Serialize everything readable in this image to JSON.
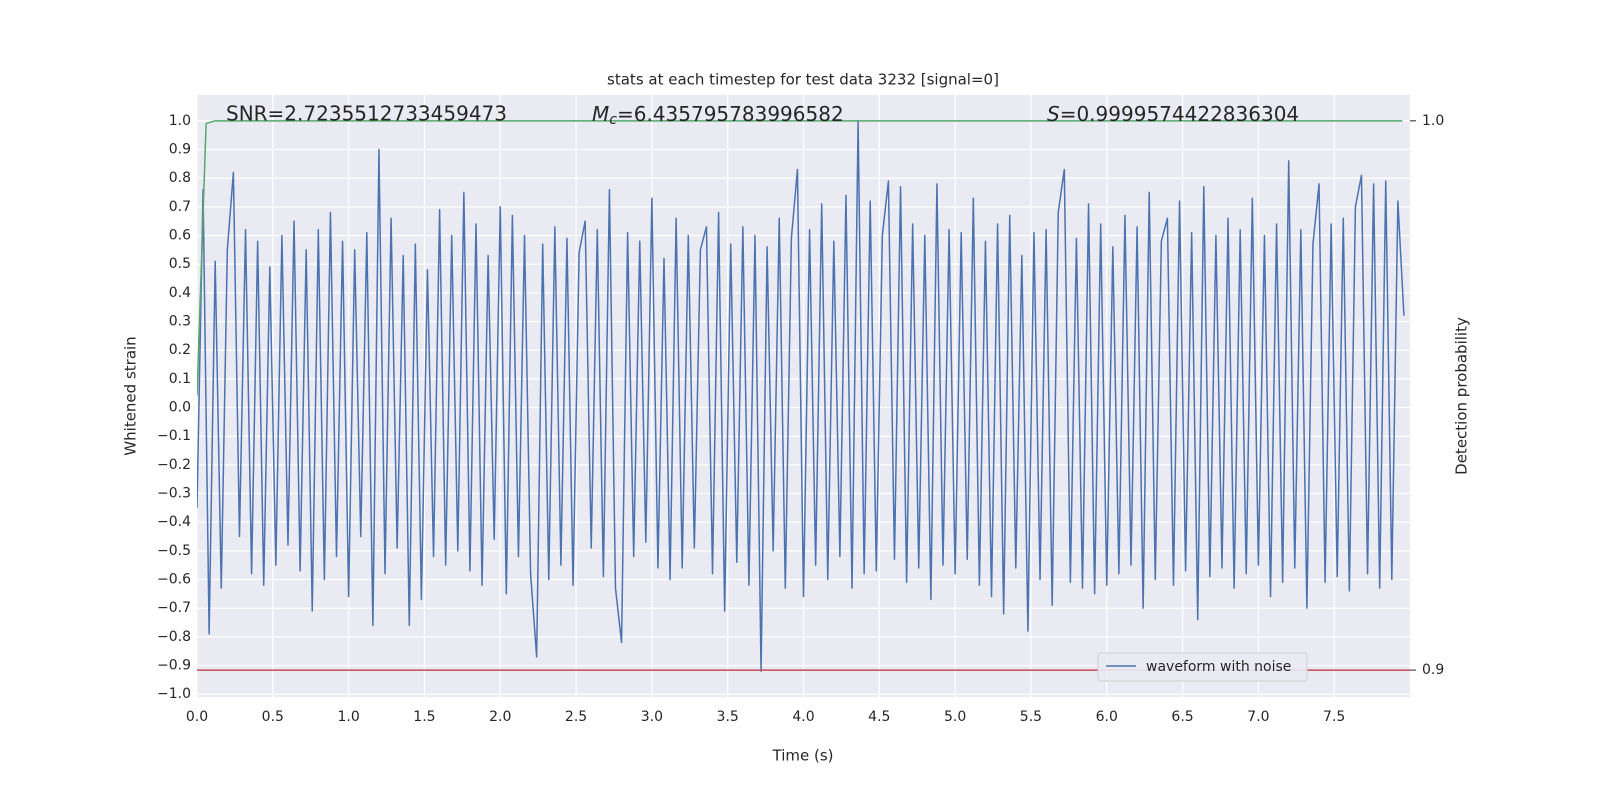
{
  "chart_data": {
    "type": "line",
    "title": "stats at each timestep for test data 3232 [signal=0]",
    "xlabel": "Time (s)",
    "ylabel": "Whitened strain",
    "y2label": "Detection probability",
    "annotations": [
      {
        "text": "SNR=2.7235512733459473"
      },
      {
        "symbol": "M",
        "subscript": "c",
        "text": "=6.435795783996582"
      },
      {
        "symbol": "S",
        "text": "=0.9999574422836304"
      }
    ],
    "xlim": [
      0,
      8.0
    ],
    "ylim": [
      -1.01,
      1.09
    ],
    "y2lim": [
      0.8951,
      1.0047
    ],
    "xticks": [
      {
        "value": 0,
        "label": "0.0"
      },
      0.5,
      {
        "value": 1,
        "label": "1.0"
      },
      1.5,
      {
        "value": 2,
        "label": "2.0"
      },
      2.5,
      {
        "value": 3,
        "label": "3.0"
      },
      3.5,
      {
        "value": 4,
        "label": "4.0"
      },
      4.5,
      {
        "value": 5,
        "label": "5.0"
      },
      5.5,
      {
        "value": 6,
        "label": "6.0"
      },
      6.5,
      {
        "value": 7,
        "label": "7.0"
      },
      7.5
    ],
    "yticks": [
      {
        "value": -1,
        "label": "−1.0"
      },
      {
        "value": -0.9,
        "label": "−0.9"
      },
      {
        "value": -0.8,
        "label": "−0.8"
      },
      {
        "value": -0.7,
        "label": "−0.7"
      },
      {
        "value": -0.6,
        "label": "−0.6"
      },
      {
        "value": -0.5,
        "label": "−0.5"
      },
      {
        "value": -0.4,
        "label": "−0.4"
      },
      {
        "value": -0.3,
        "label": "−0.3"
      },
      {
        "value": -0.2,
        "label": "−0.2"
      },
      {
        "value": -0.1,
        "label": "−0.1"
      },
      {
        "value": 0,
        "label": "0.0"
      },
      0.1,
      0.2,
      0.3,
      0.4,
      0.5,
      0.6,
      0.7,
      0.8,
      0.9,
      {
        "value": 1,
        "label": "1.0"
      }
    ],
    "y2ticks": [
      0.9,
      {
        "value": 1,
        "label": "1.0"
      }
    ],
    "grid": true,
    "legend": "lower right",
    "series": [
      {
        "name": "waveform with noise",
        "color": "#4c72b0",
        "x": [
          0,
          0.04,
          0.08,
          0.12,
          0.16,
          0.2,
          0.24,
          0.28,
          0.32,
          0.36,
          0.4,
          0.44,
          0.48,
          0.52,
          0.56,
          0.6,
          0.64,
          0.68,
          0.72,
          0.76,
          0.8,
          0.84,
          0.88,
          0.92,
          0.96,
          1,
          1.04,
          1.08,
          1.12,
          1.16,
          1.2,
          1.24,
          1.28,
          1.32,
          1.36,
          1.4,
          1.44,
          1.48,
          1.52,
          1.56,
          1.6,
          1.64,
          1.68,
          1.72,
          1.76,
          1.8,
          1.84,
          1.88,
          1.92,
          1.96,
          2,
          2.04,
          2.08,
          2.12,
          2.16,
          2.2,
          2.24,
          2.28,
          2.32,
          2.36,
          2.4,
          2.44,
          2.48,
          2.52,
          2.56,
          2.6,
          2.64,
          2.68,
          2.72,
          2.76,
          2.8,
          2.84,
          2.88,
          2.92,
          2.96,
          3,
          3.04,
          3.08,
          3.12,
          3.16,
          3.2,
          3.24,
          3.28,
          3.32,
          3.36,
          3.4,
          3.44,
          3.48,
          3.52,
          3.56,
          3.6,
          3.64,
          3.68,
          3.72,
          3.76,
          3.8,
          3.84,
          3.88,
          3.92,
          3.96,
          4,
          4.04,
          4.08,
          4.12,
          4.16,
          4.2,
          4.24,
          4.28,
          4.32,
          4.36,
          4.4,
          4.44,
          4.48,
          4.52,
          4.56,
          4.6,
          4.64,
          4.68,
          4.72,
          4.76,
          4.8,
          4.84,
          4.88,
          4.92,
          4.96,
          5,
          5.04,
          5.08,
          5.12,
          5.16,
          5.2,
          5.24,
          5.28,
          5.32,
          5.36,
          5.4,
          5.44,
          5.48,
          5.52,
          5.56,
          5.6,
          5.64,
          5.68,
          5.72,
          5.76,
          5.8,
          5.84,
          5.88,
          5.92,
          5.96,
          6,
          6.04,
          6.08,
          6.12,
          6.16,
          6.2,
          6.24,
          6.28,
          6.32,
          6.36,
          6.4,
          6.44,
          6.48,
          6.52,
          6.56,
          6.6,
          6.64,
          6.68,
          6.72,
          6.76,
          6.8,
          6.84,
          6.88,
          6.92,
          6.96,
          7,
          7.04,
          7.08,
          7.12,
          7.16,
          7.2,
          7.24,
          7.28,
          7.32,
          7.36,
          7.4,
          7.44,
          7.48,
          7.52,
          7.56,
          7.6,
          7.64,
          7.68,
          7.72,
          7.76,
          7.8,
          7.84,
          7.88,
          7.92,
          7.96
        ],
        "values": [
          -0.35,
          0.76,
          -0.79,
          0.51,
          -0.63,
          0.55,
          0.82,
          -0.45,
          0.62,
          -0.58,
          0.58,
          -0.62,
          0.49,
          -0.55,
          0.6,
          -0.48,
          0.65,
          -0.57,
          0.55,
          -0.71,
          0.62,
          -0.6,
          0.68,
          -0.52,
          0.58,
          -0.66,
          0.55,
          -0.45,
          0.61,
          -0.76,
          0.9,
          -0.58,
          0.66,
          -0.49,
          0.53,
          -0.76,
          0.57,
          -0.67,
          0.48,
          -0.52,
          0.69,
          -0.55,
          0.6,
          -0.5,
          0.75,
          -0.57,
          0.64,
          -0.62,
          0.53,
          -0.46,
          0.7,
          -0.65,
          0.67,
          -0.52,
          0.6,
          -0.58,
          -0.87,
          0.57,
          -0.6,
          0.63,
          -0.55,
          0.59,
          -0.62,
          0.54,
          0.65,
          -0.49,
          0.62,
          -0.59,
          0.76,
          -0.63,
          -0.82,
          0.61,
          -0.52,
          0.58,
          -0.47,
          0.73,
          -0.56,
          0.52,
          -0.6,
          0.66,
          -0.56,
          0.6,
          -0.49,
          0.55,
          0.63,
          -0.58,
          0.68,
          -0.71,
          0.57,
          -0.54,
          0.63,
          -0.62,
          0.6,
          -0.92,
          0.56,
          -0.5,
          0.66,
          -0.63,
          0.59,
          0.83,
          -0.66,
          0.62,
          -0.55,
          0.71,
          -0.6,
          0.58,
          -0.52,
          0.74,
          -0.63,
          1.0,
          -0.58,
          0.72,
          -0.57,
          0.6,
          0.79,
          -0.53,
          0.77,
          -0.61,
          0.64,
          -0.56,
          0.6,
          -0.67,
          0.78,
          -0.55,
          0.62,
          -0.58,
          0.61,
          -0.53,
          0.73,
          -0.62,
          0.58,
          -0.66,
          0.64,
          -0.72,
          0.67,
          -0.56,
          0.53,
          -0.78,
          0.61,
          -0.6,
          0.62,
          -0.69,
          0.68,
          0.83,
          -0.61,
          0.59,
          -0.63,
          0.71,
          -0.65,
          0.64,
          -0.62,
          0.56,
          -0.58,
          0.67,
          -0.55,
          0.63,
          -0.7,
          0.75,
          -0.6,
          0.58,
          0.66,
          -0.62,
          0.72,
          -0.57,
          0.61,
          -0.74,
          0.77,
          -0.59,
          0.6,
          -0.56,
          0.66,
          -0.63,
          0.62,
          -0.58,
          0.73,
          -0.55,
          0.6,
          -0.66,
          0.64,
          -0.61,
          0.86,
          -0.56,
          0.62,
          -0.7,
          0.57,
          0.78,
          -0.61,
          0.64,
          -0.59,
          0.66,
          -0.64,
          0.7,
          0.81,
          -0.58,
          0.78,
          -0.63,
          0.79,
          -0.6,
          0.72,
          0.32
        ]
      },
      {
        "color": "#55a868",
        "axis": "y2",
        "x": [
          0,
          0.06,
          0.12,
          7.95
        ],
        "values": [
          0.95,
          0.9995,
          1.0,
          1.0
        ]
      },
      {
        "color": "#c44e52",
        "axis": "y2",
        "x": [
          0,
          8.0
        ],
        "values": [
          0.9,
          0.9
        ]
      }
    ]
  }
}
